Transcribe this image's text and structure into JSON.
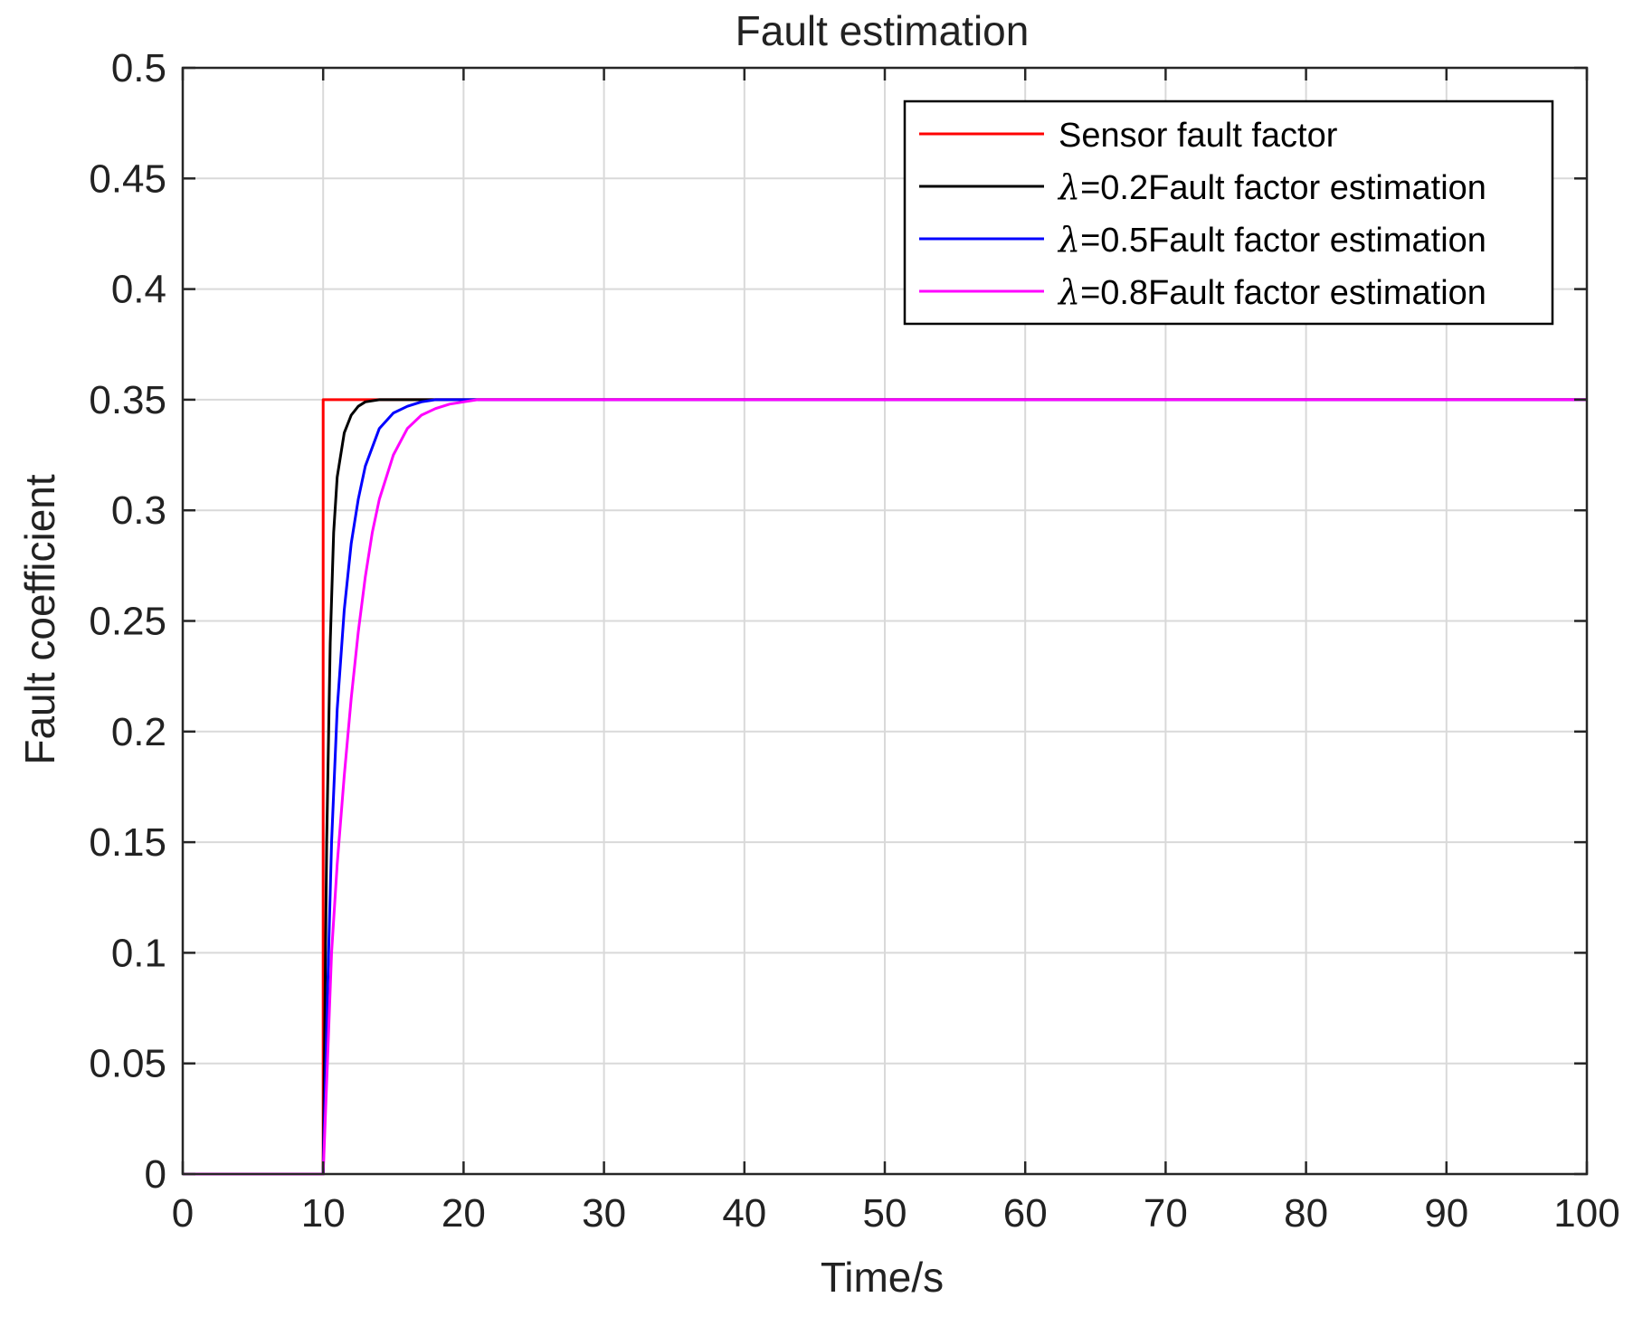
{
  "chart_data": {
    "type": "line",
    "title": "Fault estimation",
    "xlabel": "Time/s",
    "ylabel": "Fault coefficient",
    "xlim": [
      0,
      100
    ],
    "ylim": [
      0,
      0.5
    ],
    "xticks": [
      0,
      10,
      20,
      30,
      40,
      50,
      60,
      70,
      80,
      90,
      100
    ],
    "yticks": [
      0,
      0.05,
      0.1,
      0.15,
      0.2,
      0.25,
      0.3,
      0.35,
      0.4,
      0.45,
      0.5
    ],
    "xtick_labels": [
      "0",
      "10",
      "20",
      "30",
      "40",
      "50",
      "60",
      "70",
      "80",
      "90",
      "100"
    ],
    "ytick_labels": [
      "0",
      "0.05",
      "0.1",
      "0.15",
      "0.2",
      "0.25",
      "0.3",
      "0.35",
      "0.4",
      "0.45",
      "0.5"
    ],
    "grid": true,
    "legend_position": "top-right",
    "series": [
      {
        "name": "Sensor fault factor",
        "lambda_symbol": "",
        "label_text": "Sensor fault factor",
        "color": "#ff0000",
        "x": [
          0,
          10,
          10,
          100
        ],
        "y": [
          0,
          0,
          0.35,
          0.35
        ]
      },
      {
        "name": "λ=0.2Fault factor estimation",
        "lambda_symbol": "λ",
        "label_text": "=0.2Fault factor estimation",
        "color": "#000000",
        "x": [
          0,
          10,
          10.25,
          10.5,
          10.75,
          11,
          11.5,
          12,
          12.5,
          13,
          14,
          15,
          100
        ],
        "y": [
          0,
          0,
          0.15,
          0.24,
          0.29,
          0.315,
          0.335,
          0.343,
          0.347,
          0.349,
          0.35,
          0.35,
          0.35
        ]
      },
      {
        "name": "λ=0.5Fault factor estimation",
        "lambda_symbol": "λ",
        "label_text": "=0.5Fault factor estimation",
        "color": "#0000ff",
        "x": [
          0,
          10,
          10.3,
          10.6,
          11,
          11.5,
          12,
          12.5,
          13,
          14,
          15,
          16,
          17,
          18,
          100
        ],
        "y": [
          0,
          0,
          0.08,
          0.15,
          0.21,
          0.255,
          0.285,
          0.305,
          0.32,
          0.337,
          0.344,
          0.347,
          0.349,
          0.35,
          0.35
        ]
      },
      {
        "name": "λ=0.8Fault factor estimation",
        "lambda_symbol": "λ",
        "label_text": "=0.8Fault factor estimation",
        "color": "#ff00ff",
        "x": [
          0,
          10,
          10.3,
          10.6,
          11,
          11.5,
          12,
          12.5,
          13,
          13.5,
          14,
          15,
          16,
          17,
          18,
          19,
          20,
          21,
          100
        ],
        "y": [
          0,
          0,
          0.05,
          0.1,
          0.14,
          0.18,
          0.215,
          0.245,
          0.27,
          0.29,
          0.305,
          0.325,
          0.337,
          0.343,
          0.346,
          0.348,
          0.349,
          0.35,
          0.35
        ]
      }
    ]
  }
}
